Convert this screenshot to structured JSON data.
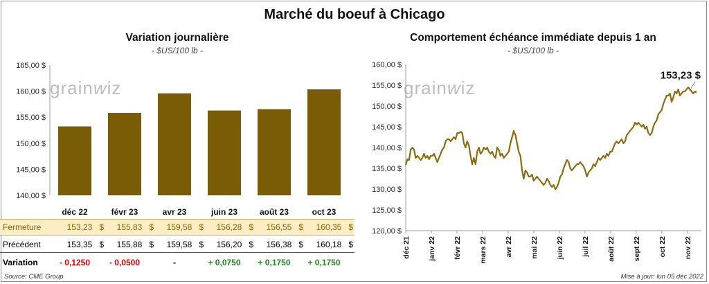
{
  "title": "Marché du boeuf à Chicago",
  "watermark": "grainwiz",
  "colors": {
    "bar": "#7b5c06",
    "line": "#8b6a0c",
    "close_bg": "#fbeec4",
    "close_text": "#8a6100",
    "negative": "#e00000",
    "positive": "#1e8a1e"
  },
  "chart_data": [
    {
      "type": "bar",
      "title": "Variation journalière",
      "subtitle": "- $US/100 lb -",
      "categories": [
        "déc 22",
        "févr 23",
        "avr 23",
        "juin 23",
        "août 23",
        "oct 23"
      ],
      "values": [
        153.23,
        155.83,
        159.58,
        156.28,
        156.55,
        160.35
      ],
      "ylim": [
        140,
        165
      ],
      "yticks": [
        "140,00 $",
        "145,00 $",
        "150,00 $",
        "155,00 $",
        "160,00 $",
        "165,00 $"
      ],
      "grid": false
    },
    {
      "type": "line",
      "title": "Comportement échéance immédiate depuis 1 an",
      "subtitle": "- $US/100 lb -",
      "ylim": [
        120,
        160
      ],
      "yticks": [
        "120,00 $",
        "125,00 $",
        "130,00 $",
        "135,00 $",
        "140,00 $",
        "145,00 $",
        "150,00 $",
        "155,00 $",
        "160,00 $"
      ],
      "xticks": [
        "déc 21",
        "janv 22",
        "févr 22",
        "mars 22",
        "avr 22",
        "mai 22",
        "juin 22",
        "juil 22",
        "août 22",
        "sept 22",
        "oct 22",
        "nov 22"
      ],
      "last_label": "153,23 $",
      "values": [
        135.8,
        137.2,
        137,
        139.5,
        140,
        139.5,
        137.5,
        138,
        137.5,
        137,
        137.5,
        138.5,
        137.5,
        138,
        137.2,
        138,
        138,
        138.5,
        137.5,
        136.5,
        137.5,
        138.5,
        139.5,
        140,
        141.5,
        142,
        142,
        141.5,
        142,
        142.5,
        142,
        143.5,
        143.5,
        143.8,
        143.5,
        141,
        140,
        141.5,
        140.5,
        138,
        136,
        137.5,
        136,
        139,
        140,
        138.5,
        139,
        140,
        139.5,
        140,
        139,
        138.5,
        139,
        138,
        137.5,
        140,
        139.5,
        138,
        138.5,
        137.5,
        138,
        138.5,
        139,
        141,
        142.5,
        144,
        143,
        141,
        139,
        138,
        134.5,
        132.5,
        134.5,
        134,
        133,
        133,
        133.5,
        132,
        132.5,
        133,
        132.5,
        132,
        131.5,
        131,
        131.5,
        132.5,
        132,
        131,
        130.5,
        131,
        130,
        130.5,
        131.5,
        133,
        133.5,
        135,
        136,
        137,
        136.5,
        135,
        134.5,
        135,
        135.5,
        136,
        136,
        136.5,
        136,
        135.5,
        134.5,
        133,
        134,
        134.5,
        135,
        136,
        135.5,
        136.5,
        137.5,
        137,
        137.5,
        138,
        137.5,
        138.5,
        138,
        139,
        139,
        140,
        141,
        141.5,
        141,
        141.5,
        142,
        141,
        141.5,
        143,
        143.5,
        144,
        144.5,
        145,
        146,
        145.5,
        146,
        145.5,
        145,
        145.5,
        144.5,
        145,
        143.5,
        143,
        143.5,
        145,
        146,
        146.5,
        148,
        148.5,
        149,
        150.5,
        151.5,
        152.5,
        152.5,
        153,
        151,
        152,
        153.5,
        153,
        154,
        152.5,
        153,
        153.5,
        153.5,
        154,
        154.5,
        154,
        153.5,
        153,
        153.5,
        153.23
      ]
    }
  ],
  "table": {
    "rows": [
      {
        "label": "Fermeture",
        "values": [
          "153,23",
          "155,83",
          "159,58",
          "156,28",
          "156,55",
          "160,35"
        ],
        "currency": "$"
      },
      {
        "label": "Précédent",
        "values": [
          "153,35",
          "155,88",
          "159,58",
          "156,20",
          "156,38",
          "160,18"
        ],
        "currency": "$"
      },
      {
        "label": "Variation",
        "values": [
          "- 0,1250",
          "- 0,0500",
          "-",
          "+ 0,0750",
          "+ 0,1750",
          "+ 0,1750"
        ],
        "signs": [
          "neg",
          "neg",
          "flat",
          "pos",
          "pos",
          "pos"
        ]
      }
    ]
  },
  "footer": {
    "source": "Source: CME Group",
    "updated": "Mise à jour: lun 05 déc 2022"
  }
}
